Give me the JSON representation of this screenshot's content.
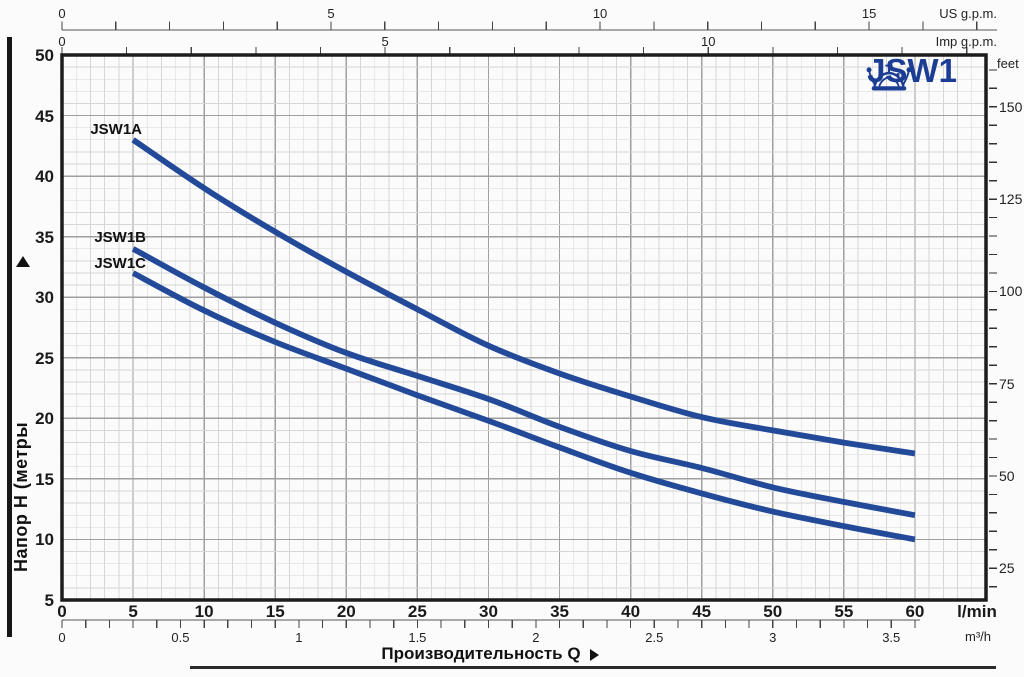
{
  "page": {
    "background": "#fbfbfb"
  },
  "logo": {
    "text": "JSW1",
    "color": "#1c3d94",
    "icon": "crown-icon"
  },
  "y_axis_title": {
    "text": "Напор H (метры",
    "arrow_icon": "up-triangle"
  },
  "x_axis_title": {
    "text": "Производительность Q",
    "arrow_icon": "right-triangle"
  },
  "chart_data": {
    "type": "line",
    "title": "JSW1",
    "x_unit": "l/min",
    "y_unit": "m",
    "x": [
      5,
      10,
      15,
      20,
      25,
      30,
      35,
      40,
      45,
      50,
      55,
      60
    ],
    "series": [
      {
        "name": "JSW1A",
        "values": [
          43.0,
          39.0,
          35.4,
          32.1,
          29.0,
          26.0,
          23.7,
          21.8,
          20.1,
          19.0,
          18.0,
          17.1
        ]
      },
      {
        "name": "JSW1B",
        "values": [
          34.0,
          30.8,
          27.9,
          25.4,
          23.5,
          21.6,
          19.3,
          17.3,
          15.9,
          14.3,
          13.1,
          12.0
        ]
      },
      {
        "name": "JSW1C",
        "values": [
          32.0,
          28.9,
          26.3,
          24.1,
          21.9,
          19.8,
          17.6,
          15.5,
          13.8,
          12.3,
          11.1,
          10.0
        ]
      }
    ],
    "xlabel": "Производительность Q",
    "ylabel": "Напор H (метры)",
    "ylim": [
      5,
      50
    ],
    "grid": "minor+major",
    "legend_position": "inline-labels-at-curve-start",
    "axes": {
      "meters": {
        "unit": "m",
        "majors": [
          5,
          10,
          15,
          20,
          25,
          30,
          35,
          40,
          45,
          50
        ],
        "minor_step": 1,
        "min": 5,
        "max": 50
      },
      "feet": {
        "label": "feet",
        "majors": [
          25,
          50,
          75,
          100,
          125,
          150
        ],
        "minor_step": 5,
        "tick_min": 20,
        "tick_max": 160,
        "meters_per_foot": 0.3048
      },
      "lmin": {
        "label": "l/min",
        "majors": [
          0,
          5,
          10,
          15,
          20,
          25,
          30,
          35,
          40,
          45,
          50,
          55,
          60
        ],
        "minor_step": 1,
        "grid_max": 65
      },
      "m3h": {
        "label": "m³/h",
        "majors": [
          0,
          0.5,
          1,
          1.5,
          2,
          2.5,
          3,
          3.5
        ],
        "minor_step": 0.1,
        "tick_max": 3.6,
        "lmin_per_unit": 16.667
      },
      "us_gpm": {
        "label": "US g.p.m.",
        "majors": [
          0,
          5,
          10,
          15
        ],
        "minor_step": 1,
        "tick_max": 17,
        "lmin_per_unit": 3.785
      },
      "imp_gpm": {
        "label": "Imp g.p.m.",
        "majors": [
          0,
          5,
          10
        ],
        "minor_step": 1,
        "tick_max": 14,
        "lmin_per_unit": 4.546
      }
    },
    "colors": {
      "curve": "#234a99",
      "grid_minor": "#d6d6d6",
      "grid_major": "#9f9f9f",
      "border": "#1c1c1c",
      "axis": "#555555"
    }
  }
}
